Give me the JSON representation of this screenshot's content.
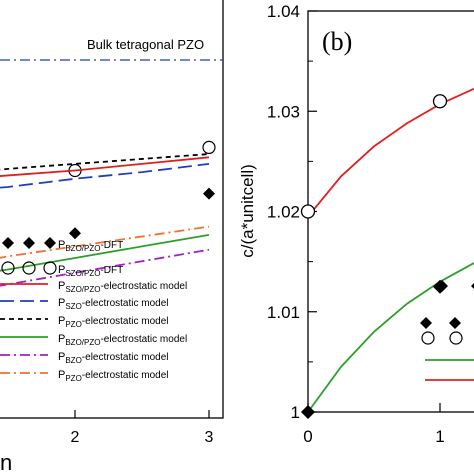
{
  "chart_data": [
    {
      "type": "line",
      "panel": "a (cropped)",
      "xlabel": "n",
      "x_ticks": [
        2,
        3
      ],
      "xlim": [
        -0.2,
        3
      ],
      "ylim": [
        0.0,
        1.0
      ],
      "annotation": "Bulk tetragonal PZO",
      "reference_line": {
        "name": "Bulk tetragonal PZO",
        "y": 0.95,
        "color": "#1f3fbf",
        "style": "dash-dot"
      },
      "series": [
        {
          "key": "bzo_dft",
          "name": "P_BZO/PZO-DFT",
          "kind": "scatter",
          "marker": "diamond-filled",
          "color": "#000000",
          "x": [
            2,
            3
          ],
          "y": [
            0.56,
            0.68
          ]
        },
        {
          "key": "szo_dft",
          "name": "P_SZO/PZO-DFT",
          "kind": "scatter",
          "marker": "circle-open",
          "color": "#000000",
          "x": [
            2,
            3
          ],
          "y": [
            0.75,
            0.82
          ]
        },
        {
          "key": "szo_pzo_model",
          "name": "P_SZO/PZO-electrostatic model",
          "kind": "line",
          "style": "solid",
          "color": "#e02020",
          "x": [
            -0.2,
            0.5,
            1,
            1.5,
            2,
            2.5,
            3
          ],
          "y": [
            0.68,
            0.7,
            0.72,
            0.735,
            0.75,
            0.77,
            0.79
          ]
        },
        {
          "key": "szo_model",
          "name": "P_SZO-electrostatic model",
          "kind": "line",
          "style": "dash",
          "color": "#1f3fbf",
          "x": [
            -0.2,
            0.5,
            1,
            1.5,
            2,
            2.5,
            3
          ],
          "y": [
            0.63,
            0.66,
            0.685,
            0.7,
            0.725,
            0.745,
            0.77
          ]
        },
        {
          "key": "pzo_model",
          "name": "P_PZO-electrostatic model",
          "kind": "line",
          "style": "short-dash",
          "color": "#000000",
          "x": [
            -0.2,
            0.5,
            1,
            1.5,
            2,
            2.5,
            3
          ],
          "y": [
            0.69,
            0.715,
            0.735,
            0.755,
            0.77,
            0.785,
            0.8
          ]
        },
        {
          "key": "bzo_pzo_model",
          "name": "P_BZO/PZO-electrostatic model",
          "kind": "line",
          "style": "solid",
          "color": "#2ca02c",
          "x": [
            -0.2,
            0.5,
            1,
            1.5,
            2,
            2.5,
            3
          ],
          "y": [
            0.33,
            0.38,
            0.42,
            0.45,
            0.485,
            0.52,
            0.555
          ]
        },
        {
          "key": "bzo_model",
          "name": "P_BZO-electrostatic model",
          "kind": "line",
          "style": "dash-dot",
          "color": "#a020c0",
          "x": [
            -0.2,
            0.5,
            1,
            1.5,
            2,
            2.5,
            3
          ],
          "y": [
            0.28,
            0.33,
            0.37,
            0.405,
            0.44,
            0.475,
            0.51
          ]
        },
        {
          "key": "pzo_alone_model",
          "name": "P_PZO-electrostatic model",
          "kind": "line",
          "style": "dash-dot",
          "color": "#f07030",
          "x": [
            -0.2,
            0.5,
            1,
            1.5,
            2,
            2.5,
            3
          ],
          "y": [
            0.36,
            0.41,
            0.45,
            0.49,
            0.52,
            0.55,
            0.58
          ]
        }
      ],
      "legend": {
        "placement": "bottom",
        "entries": [
          {
            "series": "bzo_dft",
            "base": "P",
            "sub": "BZO/PZO",
            "suffix": "-DFT"
          },
          {
            "series": "szo_dft",
            "base": "P",
            "sub": "SZO/PZO",
            "suffix": "-DFT"
          },
          {
            "series": "szo_pzo_model",
            "base": "P",
            "sub": "SZO/PZO",
            "suffix": "-electrostatic model"
          },
          {
            "series": "szo_model",
            "base": "P",
            "sub": "SZO",
            "suffix": "-electrostatic model"
          },
          {
            "series": "pzo_model",
            "base": "P",
            "sub": "PZO",
            "suffix": "-electrostatic model"
          },
          {
            "series": "bzo_pzo_model",
            "base": "P",
            "sub": "BZO/PZO",
            "suffix": "-electrostatic model"
          },
          {
            "series": "bzo_model",
            "base": "P",
            "sub": "BZO",
            "suffix": "-electrostatic model"
          },
          {
            "series": "pzo_alone_model",
            "base": "P",
            "sub": "PZO",
            "suffix": "-electrostatic model"
          }
        ]
      },
      "grid": false
    },
    {
      "type": "line",
      "panel_label": "(b)",
      "ylabel": "c/(a*unitcell)",
      "xlim": [
        0,
        1.6
      ],
      "ylim": [
        1.0,
        1.04
      ],
      "x_ticks": [
        0,
        1
      ],
      "y_ticks": [
        1,
        1.01,
        1.02,
        1.03,
        1.04
      ],
      "y_tick_labels": [
        "1",
        "1.01",
        "1.02",
        "1.03",
        "1.04"
      ],
      "series": [
        {
          "key": "red",
          "kind": "line",
          "style": "solid",
          "color": "#e02020",
          "x": [
            0,
            0.25,
            0.5,
            0.75,
            1.0,
            1.25,
            1.6
          ],
          "y": [
            1.0195,
            1.0235,
            1.0265,
            1.0288,
            1.0307,
            1.0322,
            1.0335
          ]
        },
        {
          "key": "green",
          "kind": "line",
          "style": "solid",
          "color": "#2ca02c",
          "x": [
            0,
            0.25,
            0.5,
            0.75,
            1.0,
            1.25,
            1.6
          ],
          "y": [
            1.0,
            1.0045,
            1.008,
            1.0108,
            1.013,
            1.0148,
            1.0165
          ]
        },
        {
          "key": "circles",
          "kind": "scatter",
          "marker": "circle-open",
          "color": "#000000",
          "x": [
            0,
            1
          ],
          "y": [
            1.02,
            1.031
          ]
        },
        {
          "key": "diamonds",
          "kind": "scatter",
          "marker": "diamond-filled",
          "color": "#000000",
          "x": [
            0,
            1
          ],
          "y": [
            1.0,
            1.0125
          ]
        }
      ],
      "legend": {
        "placement": "bottom-right (cropped)",
        "entries": [
          {
            "series": "diamonds",
            "marker": "diamond-filled"
          },
          {
            "series": "circles",
            "marker": "circle-open"
          },
          {
            "series": "green",
            "line": "solid"
          },
          {
            "series": "red",
            "line": "solid"
          }
        ]
      },
      "grid": false
    }
  ]
}
